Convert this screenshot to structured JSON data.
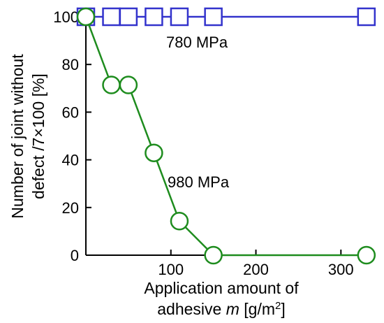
{
  "chart_data": {
    "type": "line",
    "xlabel_line1": "Application amount of",
    "xlabel_line2_prefix": "adhesive ",
    "xlabel_var": "m",
    "xlabel_unit_open": " [g/m",
    "xlabel_unit_sup": "2",
    "xlabel_unit_close": "]",
    "ylabel_line1": "Number of joint without",
    "ylabel_line2": "defect /7×100 [%]",
    "xlim": [
      0,
      340
    ],
    "ylim": [
      0,
      100
    ],
    "xticks": [
      100,
      200,
      300
    ],
    "yticks": [
      0,
      20,
      40,
      60,
      80,
      100
    ],
    "grid": false,
    "series": [
      {
        "name": "780 MPa",
        "color": "#3333cc",
        "marker": "square",
        "x": [
          0,
          30,
          50,
          80,
          110,
          150,
          330
        ],
        "y": [
          100,
          100,
          100,
          100,
          100,
          100,
          100
        ]
      },
      {
        "name": "980 MPa",
        "color": "#1e8c1e",
        "marker": "circle",
        "x": [
          0,
          30,
          50,
          80,
          110,
          150,
          330
        ],
        "y": [
          100,
          71.4,
          71.4,
          42.9,
          14.3,
          0,
          0
        ]
      }
    ]
  }
}
